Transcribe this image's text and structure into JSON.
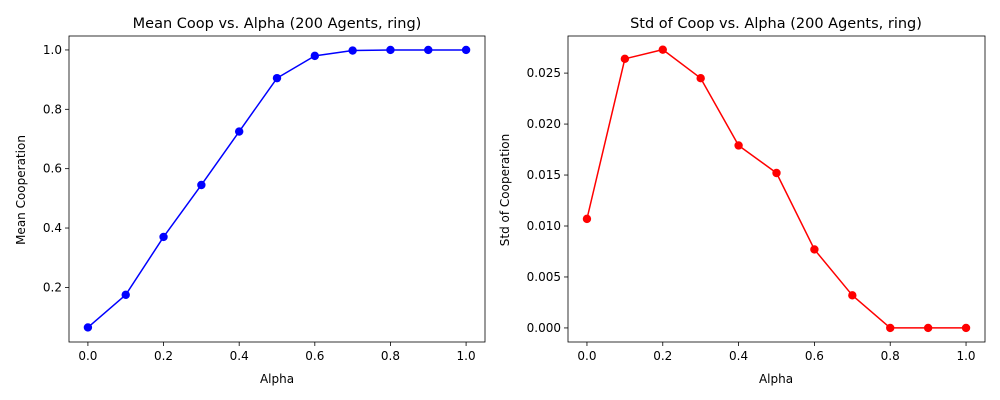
{
  "chart_data": [
    {
      "type": "line",
      "title": "Mean Coop vs. Alpha (200 Agents, ring)",
      "xlabel": "Alpha",
      "ylabel": "Mean Cooperation",
      "x": [
        0.0,
        0.1,
        0.2,
        0.3,
        0.4,
        0.5,
        0.6,
        0.7,
        0.8,
        0.9,
        1.0
      ],
      "xlim": [
        -0.05,
        1.05
      ],
      "ylim": [
        0.016,
        1.047
      ],
      "xticks": [
        0.0,
        0.2,
        0.4,
        0.6,
        0.8,
        1.0
      ],
      "xtick_labels": [
        "0.0",
        "0.2",
        "0.4",
        "0.6",
        "0.8",
        "1.0"
      ],
      "yticks": [
        0.2,
        0.4,
        0.6,
        0.8,
        1.0
      ],
      "ytick_labels": [
        "0.2",
        "0.4",
        "0.6",
        "0.8",
        "1.0"
      ],
      "grid": false,
      "series": [
        {
          "color": "#0000ff",
          "marker": "circle",
          "values": [
            0.065,
            0.175,
            0.37,
            0.545,
            0.725,
            0.905,
            0.98,
            0.998,
            1.0,
            1.0,
            1.0
          ]
        }
      ]
    },
    {
      "type": "line",
      "title": "Std of Coop vs. Alpha (200 Agents, ring)",
      "xlabel": "Alpha",
      "ylabel": "Std of Cooperation",
      "x": [
        0.0,
        0.1,
        0.2,
        0.3,
        0.4,
        0.5,
        0.6,
        0.7,
        0.8,
        0.9,
        1.0
      ],
      "xlim": [
        -0.05,
        1.05
      ],
      "ylim": [
        -0.00138,
        0.02864
      ],
      "xticks": [
        0.0,
        0.2,
        0.4,
        0.6,
        0.8,
        1.0
      ],
      "xtick_labels": [
        "0.0",
        "0.2",
        "0.4",
        "0.6",
        "0.8",
        "1.0"
      ],
      "yticks": [
        0.0,
        0.005,
        0.01,
        0.015,
        0.02,
        0.025
      ],
      "ytick_labels": [
        "0.000",
        "0.005",
        "0.010",
        "0.015",
        "0.020",
        "0.025"
      ],
      "grid": false,
      "series": [
        {
          "color": "#ff0000",
          "marker": "circle",
          "values": [
            0.0107,
            0.0264,
            0.0273,
            0.0245,
            0.0179,
            0.0152,
            0.0077,
            0.0032,
            0.0,
            0.0,
            0.0
          ]
        }
      ]
    }
  ]
}
